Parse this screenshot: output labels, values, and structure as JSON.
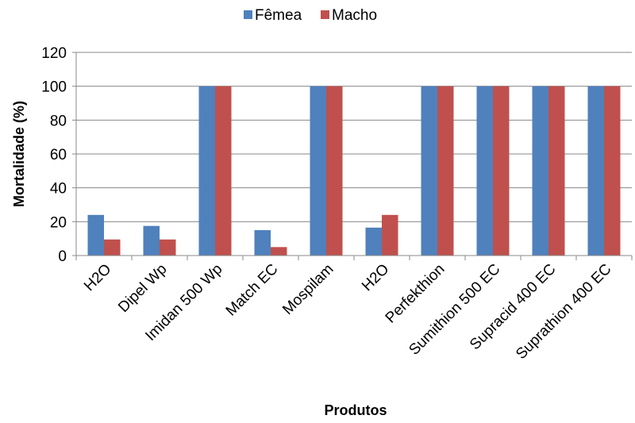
{
  "chart_data": {
    "type": "bar",
    "xlabel": "Produtos",
    "ylabel": "Mortalidade  (%)",
    "ylim": [
      0,
      120
    ],
    "yticks": [
      0,
      20,
      40,
      60,
      80,
      100,
      120
    ],
    "grid": true,
    "legend_position": "top",
    "categories": [
      "H2O",
      "Dipel Wp",
      "Imidan 500 Wp",
      "Match EC",
      "Mospilam",
      "H2O",
      "Perfekthion",
      "Sumithion 500 EC",
      "Supracid 400 EC",
      "Suprathion 400 EC"
    ],
    "series": [
      {
        "name": "Fêmea",
        "color": "#4F81BD",
        "values": [
          24,
          17.5,
          100,
          15,
          100,
          16.5,
          100,
          100,
          100,
          100
        ]
      },
      {
        "name": "Macho",
        "color": "#C0504D",
        "values": [
          9.5,
          9.5,
          100,
          5,
          100,
          24,
          100,
          100,
          100,
          100
        ]
      }
    ]
  }
}
